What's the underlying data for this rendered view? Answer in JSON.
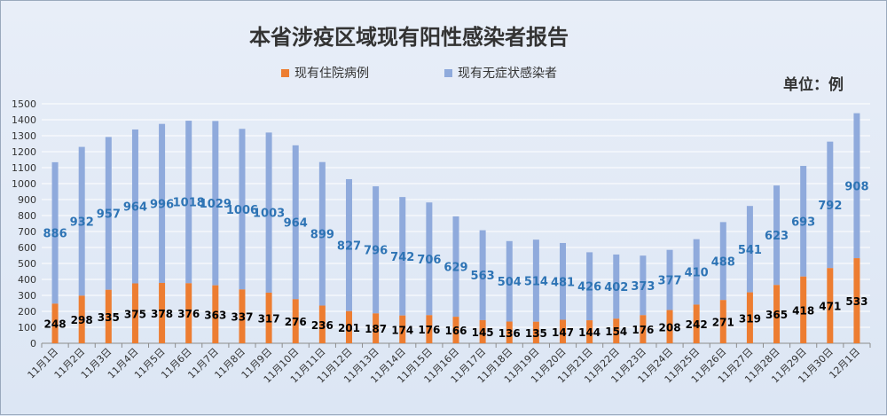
{
  "chart_data": {
    "type": "bar",
    "stacked": true,
    "title": "本省涉疫区域现有阳性感染者报告",
    "unit": "单位：例",
    "grid": true,
    "legend_position": "top",
    "ylim": [
      0,
      1500
    ],
    "yticks": [
      0,
      100,
      200,
      300,
      400,
      500,
      600,
      700,
      800,
      900,
      1000,
      1100,
      1200,
      1300,
      1400,
      1500
    ],
    "categories": [
      "11月1日",
      "11月2日",
      "11月3日",
      "11月4日",
      "11月5日",
      "11月6日",
      "11月7日",
      "11月8日",
      "11月9日",
      "11月10日",
      "11月11日",
      "11月12日",
      "11月13日",
      "11月14日",
      "11月15日",
      "11月16日",
      "11月17日",
      "11月18日",
      "11月19日",
      "11月20日",
      "11月21日",
      "11月22日",
      "11月23日",
      "11月24日",
      "11月25日",
      "11月26日",
      "11月27日",
      "11月28日",
      "11月29日",
      "11月30日",
      "12月1日"
    ],
    "series": [
      {
        "name": "现有住院病例",
        "color": "#ed7d31",
        "values": [
          248,
          298,
          335,
          375,
          378,
          376,
          363,
          337,
          317,
          276,
          236,
          201,
          187,
          174,
          176,
          166,
          145,
          136,
          135,
          147,
          144,
          154,
          176,
          208,
          242,
          271,
          319,
          365,
          418,
          471,
          533
        ]
      },
      {
        "name": "现有无症状感染者",
        "color": "#8faadc",
        "values": [
          886,
          932,
          957,
          964,
          996,
          1018,
          1029,
          1006,
          1003,
          964,
          899,
          827,
          796,
          742,
          706,
          629,
          563,
          504,
          514,
          481,
          426,
          402,
          373,
          377,
          410,
          488,
          541,
          623,
          693,
          792,
          908
        ]
      }
    ]
  }
}
